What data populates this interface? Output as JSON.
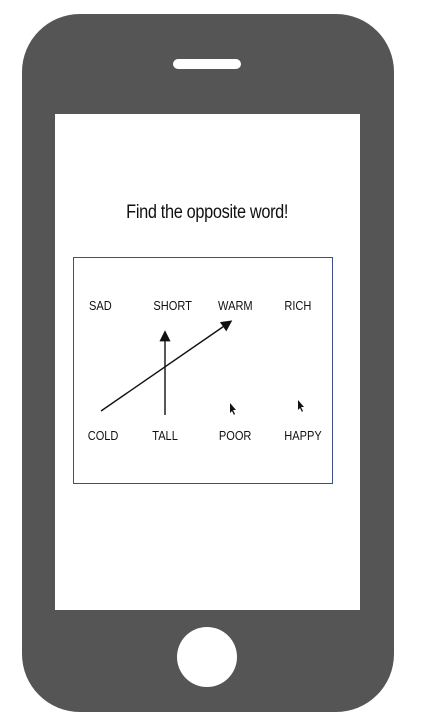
{
  "game": {
    "title": "Find the opposite word!",
    "top_words": [
      "SAD",
      "SHORT",
      "WARM",
      "RICH"
    ],
    "bottom_words": [
      "COLD",
      "TALL",
      "POOR",
      "HAPPY"
    ]
  },
  "colors": {
    "phone": "#555555",
    "board_border": "#3b4f8a",
    "text": "#111111"
  },
  "icons": [
    "pointer-cursor-icon"
  ]
}
